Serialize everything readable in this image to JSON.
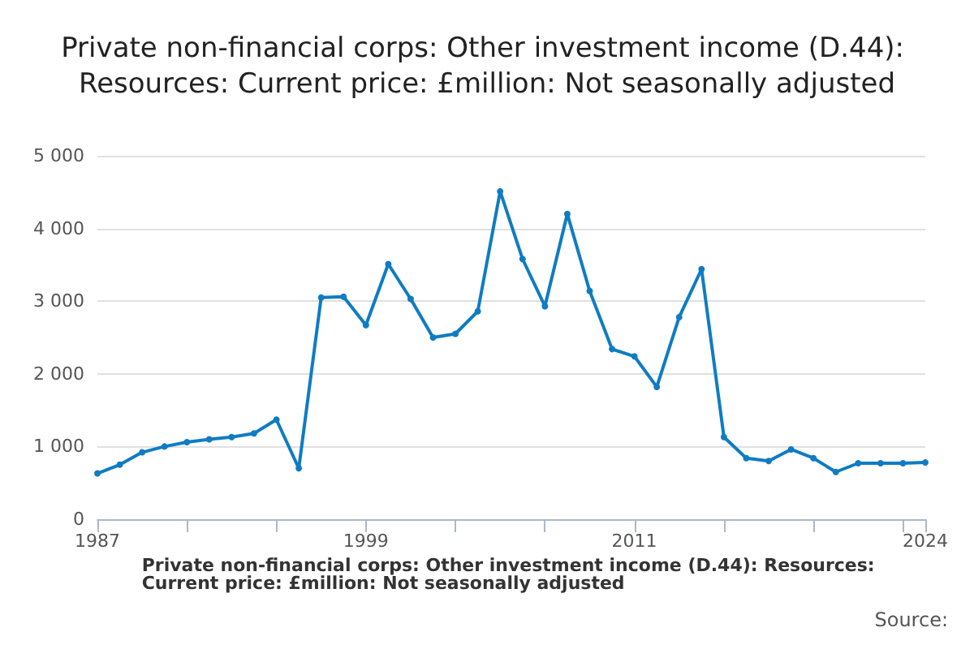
{
  "chart_data": {
    "type": "line",
    "title": "Private non-financial corps: Other investment income (D.44): Resources: Current price: £million: Not seasonally adjusted",
    "x": [
      1987,
      1988,
      1989,
      1990,
      1991,
      1992,
      1993,
      1994,
      1995,
      1996,
      1997,
      1998,
      1999,
      2000,
      2001,
      2002,
      2003,
      2004,
      2005,
      2006,
      2007,
      2008,
      2009,
      2010,
      2011,
      2012,
      2013,
      2014,
      2015,
      2016,
      2017,
      2018,
      2019,
      2020,
      2021,
      2022,
      2023,
      2024
    ],
    "series": [
      {
        "name": "Private non-financial corps: Other investment income (D.44): Resources: Current price: £million: Not seasonally adjusted",
        "color": "#0f7cc2",
        "values": [
          630,
          750,
          920,
          1000,
          1060,
          1100,
          1130,
          1180,
          1370,
          700,
          3050,
          3060,
          2670,
          3510,
          3030,
          2500,
          2550,
          2860,
          4510,
          3580,
          2930,
          4200,
          3140,
          2340,
          2240,
          1820,
          2780,
          3440,
          1130,
          840,
          800,
          960,
          840,
          650,
          770,
          770,
          770,
          780
        ]
      }
    ],
    "xlim": [
      1987,
      2024
    ],
    "xticks": [
      1987,
      {
        "value": 1991,
        "label": null
      },
      {
        "value": 1995,
        "label": null
      },
      1999,
      {
        "value": 2003,
        "label": null
      },
      {
        "value": 2007,
        "label": null
      },
      2011,
      {
        "value": 2015,
        "label": null
      },
      {
        "value": 2019,
        "label": null
      },
      {
        "value": 2023,
        "label": null
      },
      2024
    ],
    "ylim": [
      0,
      5000
    ],
    "yticks": [
      0,
      {
        "value": 1000,
        "label": "1 000"
      },
      {
        "value": 2000,
        "label": "2 000"
      },
      {
        "value": 3000,
        "label": "3 000"
      },
      {
        "value": 4000,
        "label": "4 000"
      },
      {
        "value": 5000,
        "label": "5 000"
      }
    ],
    "grid": "y",
    "legend": "bottom",
    "marker": "circle",
    "line_style": "solid",
    "annotations": [
      "Source:"
    ]
  }
}
